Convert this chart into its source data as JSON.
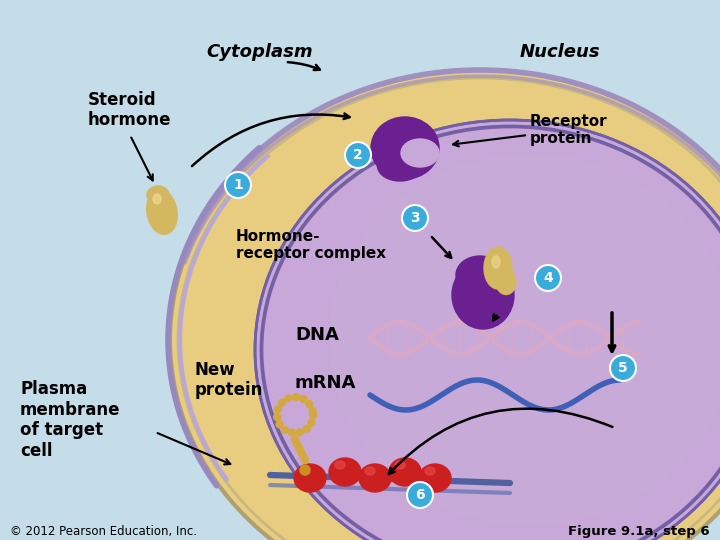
{
  "background_color": "#c5dde8",
  "cell_outer_color": "#e8cc80",
  "cell_outer_edge": "#c8b888",
  "cytoplasm_fill": "#c8a8d8",
  "nucleus_fill": "#c0a0d0",
  "nucleus_edge": "#8060a0",
  "membrane_color": "#a090c0",
  "cytoplasm_label": "Cytoplasm",
  "nucleus_label": "Nucleus",
  "steroid_label": "Steroid\nhormone",
  "receptor_label": "Receptor\nprotein",
  "complex_label": "Hormone-\nreceptor complex",
  "dna_label": "DNA",
  "mrna_label": "mRNA",
  "new_protein_label": "New\nprotein",
  "plasma_label": "Plasma\nmembrane\nof target\ncell",
  "copyright": "© 2012 Pearson Education, Inc.",
  "figure_label": "Figure 9.1a, step 6",
  "step_circle_color": "#3aacdc",
  "step_text_color": "white",
  "hormone_color": "#d4b860",
  "receptor_color": "#6a2090",
  "dna_color": "#d8a8c8",
  "mrna_color": "#4060b8",
  "protein_color": "#cc2020",
  "bead_color": "#d4a840",
  "arrow_color": "black"
}
